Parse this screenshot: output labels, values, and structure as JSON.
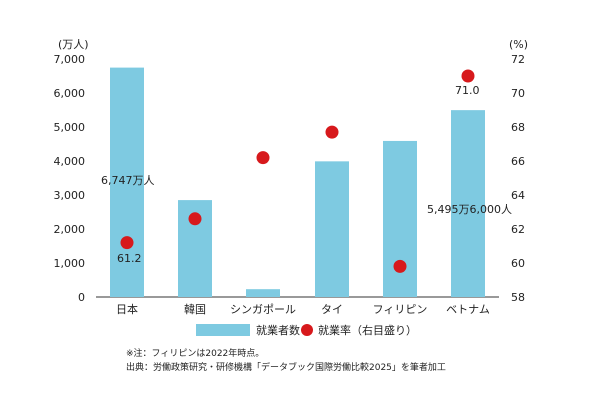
{
  "chart_data": {
    "type": "bar",
    "categories": [
      "日本",
      "韓国",
      "シンガポール",
      "タイ",
      "フィリピン",
      "ベトナム"
    ],
    "series": [
      {
        "name": "就業者数",
        "axis": "left",
        "kind": "bar",
        "color": "#7ecae1",
        "values": [
          6747,
          2850,
          230,
          3990,
          4590,
          5496
        ]
      },
      {
        "name": "就業率（右目盛り）",
        "axis": "right",
        "kind": "point",
        "color": "#d7191c",
        "values": [
          61.2,
          62.6,
          66.2,
          67.7,
          59.8,
          71.0
        ]
      }
    ],
    "left_unit": "(万人)",
    "right_unit": "(%)",
    "ylim_left": [
      0,
      7000
    ],
    "ylim_right": [
      58,
      72
    ],
    "left_ticks": [
      "0",
      "1,000",
      "2,000",
      "3,000",
      "4,000",
      "5,000",
      "6,000",
      "7,000"
    ],
    "right_ticks": [
      "58",
      "60",
      "62",
      "64",
      "66",
      "68",
      "70",
      "72"
    ],
    "annotations": {
      "japan_bar": "6,747万人",
      "japan_rate": "61.2",
      "vietnam_bar": "5,495万6,000人",
      "vietnam_rate": "71.0"
    },
    "legend": {
      "bar_label": "就業者数",
      "point_label": "就業率（右目盛り）",
      "position": "bottom"
    }
  },
  "notes": {
    "note1": "※注：フィリピンは2022年時点。",
    "source": "出典：労働政策研究・研修機構「データブック国際労働比較2025」を筆者加工"
  }
}
